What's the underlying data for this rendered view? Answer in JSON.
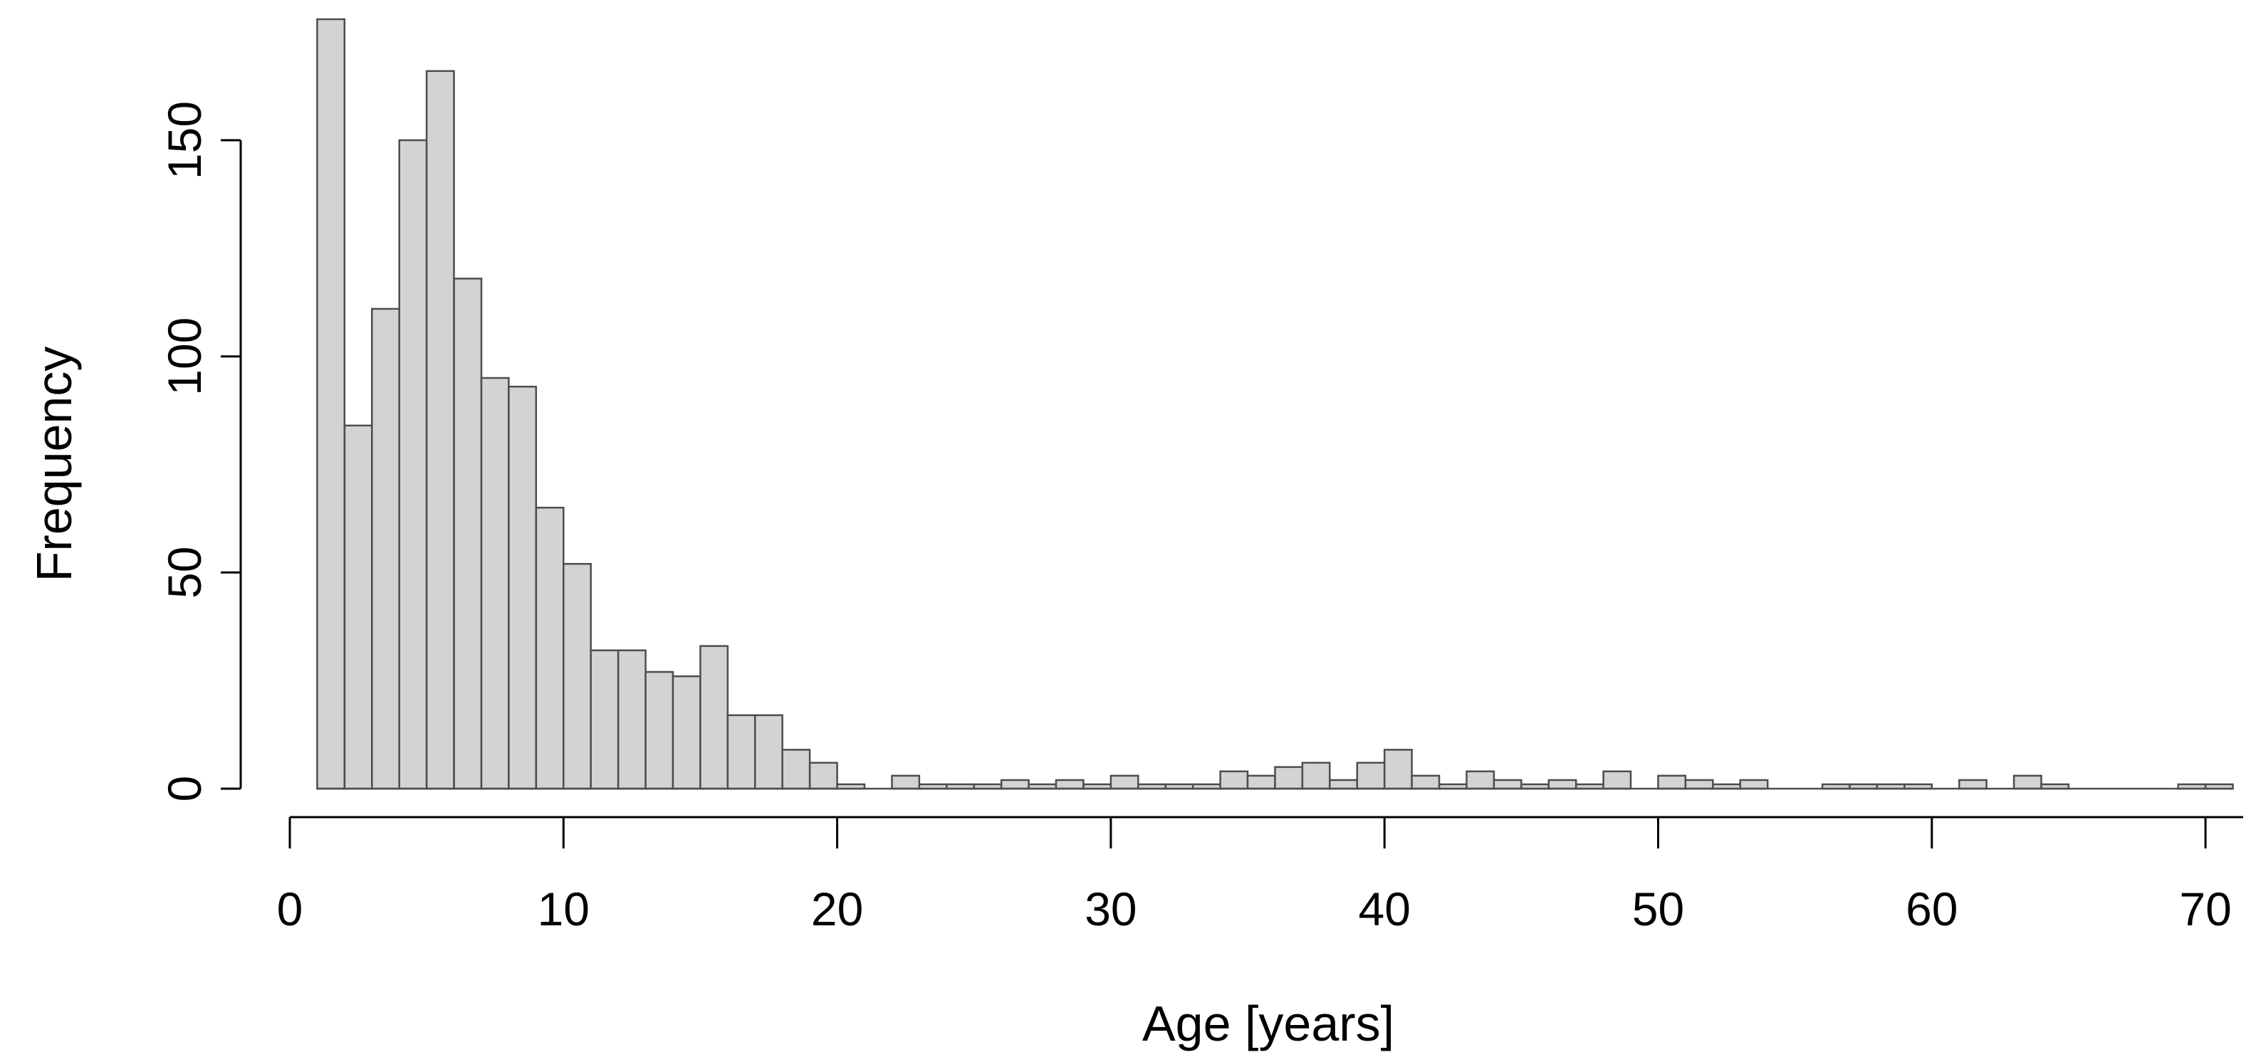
{
  "page": {
    "background": "#ffffff"
  },
  "chart_data": {
    "type": "bar",
    "subtype": "histogram",
    "title": "",
    "xlabel": "Age [years]",
    "ylabel": "Frequency",
    "bin_width": 1,
    "bin_left_edges": [
      1,
      2,
      3,
      4,
      5,
      6,
      7,
      8,
      9,
      10,
      11,
      12,
      13,
      14,
      15,
      16,
      17,
      18,
      19,
      20,
      21,
      22,
      23,
      24,
      25,
      26,
      27,
      28,
      29,
      30,
      31,
      32,
      33,
      34,
      35,
      36,
      37,
      38,
      39,
      40,
      41,
      42,
      43,
      44,
      45,
      46,
      47,
      48,
      49,
      50,
      51,
      52,
      53,
      54,
      55,
      56,
      57,
      58,
      59,
      60,
      61,
      62,
      63,
      64,
      65,
      66,
      67,
      68,
      69,
      70
    ],
    "values": [
      178,
      84,
      111,
      150,
      166,
      118,
      95,
      93,
      65,
      52,
      32,
      32,
      27,
      26,
      33,
      17,
      17,
      9,
      6,
      1,
      0,
      3,
      1,
      1,
      1,
      2,
      1,
      2,
      1,
      3,
      1,
      1,
      1,
      4,
      3,
      5,
      6,
      2,
      6,
      9,
      3,
      1,
      4,
      2,
      1,
      2,
      1,
      4,
      0,
      3,
      2,
      1,
      2,
      0,
      0,
      1,
      1,
      1,
      1,
      0,
      2,
      0,
      3,
      1,
      0,
      0,
      0,
      0,
      1,
      1
    ],
    "x_ticks": [
      0,
      10,
      20,
      30,
      40,
      50,
      60,
      70
    ],
    "y_ticks": [
      0,
      50,
      100,
      150
    ],
    "x_tick_labels": [
      "0",
      "10",
      "20",
      "30",
      "40",
      "50",
      "60",
      "70"
    ],
    "y_tick_labels": [
      "0",
      "50",
      "100",
      "150"
    ],
    "xlim": [
      0,
      72
    ],
    "ylim": [
      0,
      180
    ],
    "grid": false,
    "legend": false,
    "colors": {
      "bar_fill": "#d3d3d3",
      "bar_border": "#4d4d4d",
      "axis": "#000000",
      "text": "#000000",
      "background": "#ffffff"
    }
  }
}
